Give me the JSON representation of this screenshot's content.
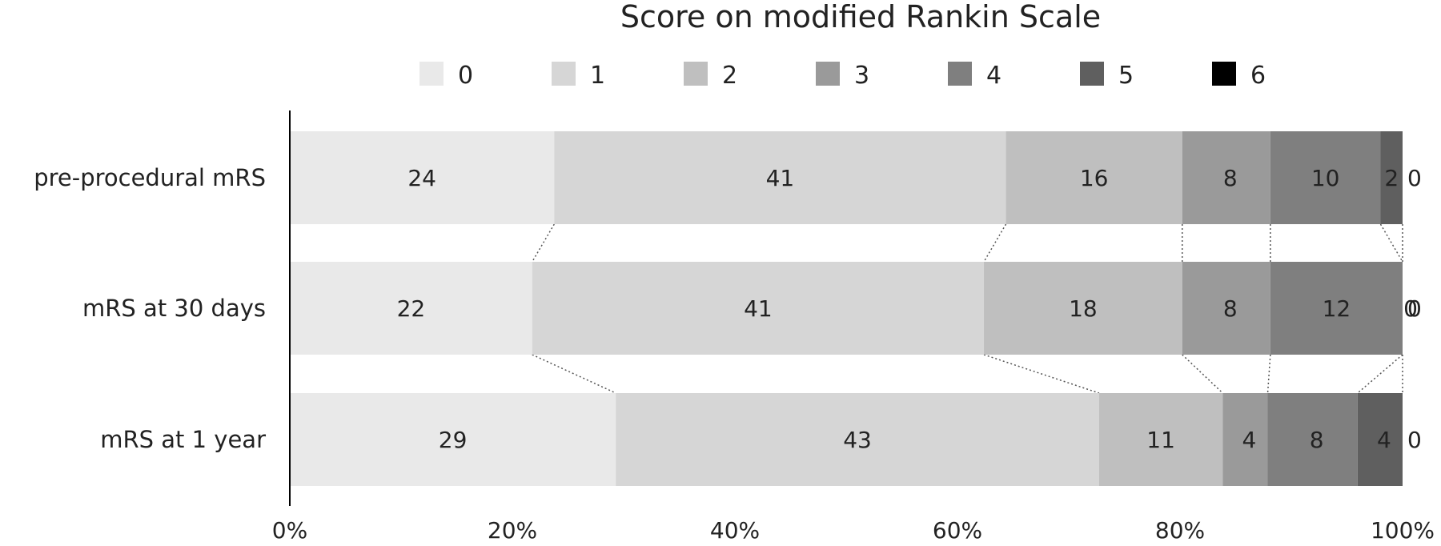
{
  "chart_data": {
    "type": "bar",
    "orientation": "horizontal",
    "stacked": "percent",
    "title": "Score on modified Rankin Scale",
    "categories": [
      "pre-procedural mRS",
      "mRS at 30 days",
      "mRS at 1 year"
    ],
    "series": [
      {
        "name": "0",
        "color": "#e9e9e9",
        "values": [
          24,
          22,
          29
        ]
      },
      {
        "name": "1",
        "color": "#d6d6d6",
        "values": [
          41,
          41,
          43
        ]
      },
      {
        "name": "2",
        "color": "#bfbfbf",
        "values": [
          16,
          18,
          11
        ]
      },
      {
        "name": "3",
        "color": "#9a9a9a",
        "values": [
          8,
          8,
          4
        ]
      },
      {
        "name": "4",
        "color": "#7f7f7f",
        "values": [
          10,
          12,
          8
        ]
      },
      {
        "name": "5",
        "color": "#5f5f5f",
        "values": [
          2,
          0,
          4
        ]
      },
      {
        "name": "6",
        "color": "#000000",
        "values": [
          0,
          0,
          0
        ]
      }
    ],
    "x_ticks": [
      "0%",
      "20%",
      "40%",
      "60%",
      "80%",
      "100%"
    ],
    "xlim": [
      0,
      100
    ],
    "legend_position": "top",
    "grid": false,
    "connector_lines": "dotted"
  }
}
